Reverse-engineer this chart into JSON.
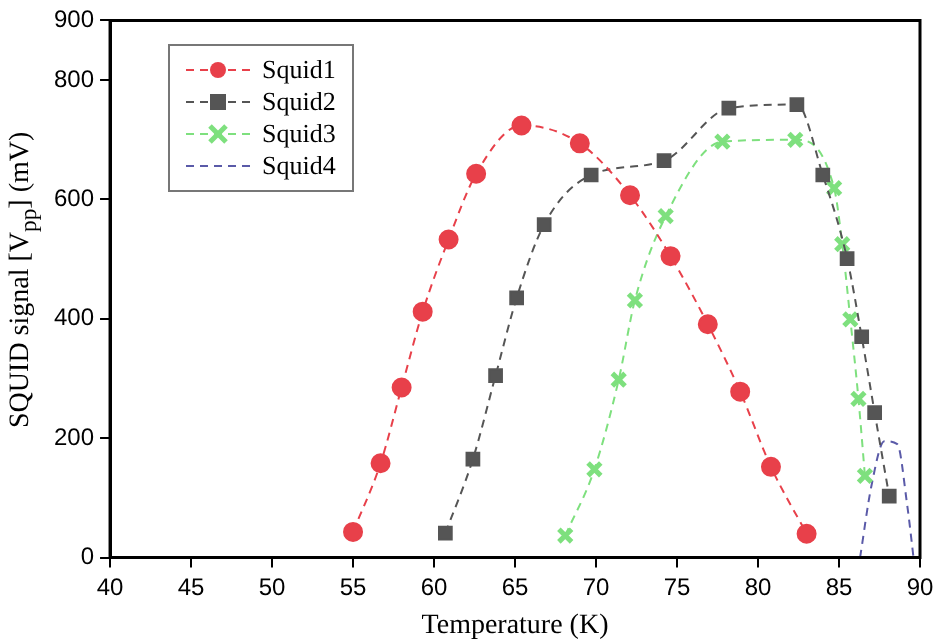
{
  "chart_data": {
    "type": "line",
    "xlabel": "Temperature (K)",
    "ylabel": "SQUID signal [V$_{pp}$] (mV)",
    "xlim": [
      40,
      90
    ],
    "xticks": [
      40,
      45,
      50,
      55,
      60,
      65,
      70,
      75,
      80,
      85,
      90
    ],
    "ylim": [
      0,
      900
    ],
    "yticks": [
      0,
      200,
      400,
      600,
      800,
      900
    ],
    "grid": false,
    "legend": "top left",
    "line_style": "dashed",
    "series": [
      {
        "name": "Squid1",
        "color": "#e8404a",
        "marker": "circle",
        "x": [
          55,
          56.7,
          58,
          59.3,
          60.9,
          62.6,
          65.4,
          69,
          72.1,
          74.6,
          76.9,
          78.9,
          80.8,
          83
        ],
        "values": [
          43,
          158,
          285,
          412,
          533,
          643,
          724,
          694,
          607,
          505,
          391,
          278,
          152,
          40
        ]
      },
      {
        "name": "Squid2",
        "color": "#555555",
        "marker": "square",
        "x": [
          60.7,
          62.4,
          63.8,
          65.1,
          66.8,
          69.7,
          74.2,
          78.2,
          82.4,
          84,
          85.5,
          86.4,
          87.2,
          88.1
        ],
        "values": [
          41,
          165,
          305,
          435,
          558,
          641,
          665,
          753,
          759,
          641,
          501,
          370,
          243,
          103
        ]
      },
      {
        "name": "Squid3",
        "color": "#7ee07e",
        "marker": "cross",
        "x": [
          68.1,
          69.9,
          71.4,
          72.4,
          74.3,
          77.8,
          82.3,
          84.7,
          85.2,
          85.7,
          86.2,
          86.6
        ],
        "values": [
          37,
          148,
          298,
          431,
          572,
          697,
          700,
          619,
          525,
          399,
          266,
          137
        ]
      },
      {
        "name": "Squid4",
        "color": "#5a5aa8",
        "marker": "none",
        "x": [
          86.3,
          87,
          87.8,
          88.6,
          89.2,
          89.6
        ],
        "values": [
          0,
          120,
          195,
          190,
          90,
          0
        ]
      }
    ]
  }
}
